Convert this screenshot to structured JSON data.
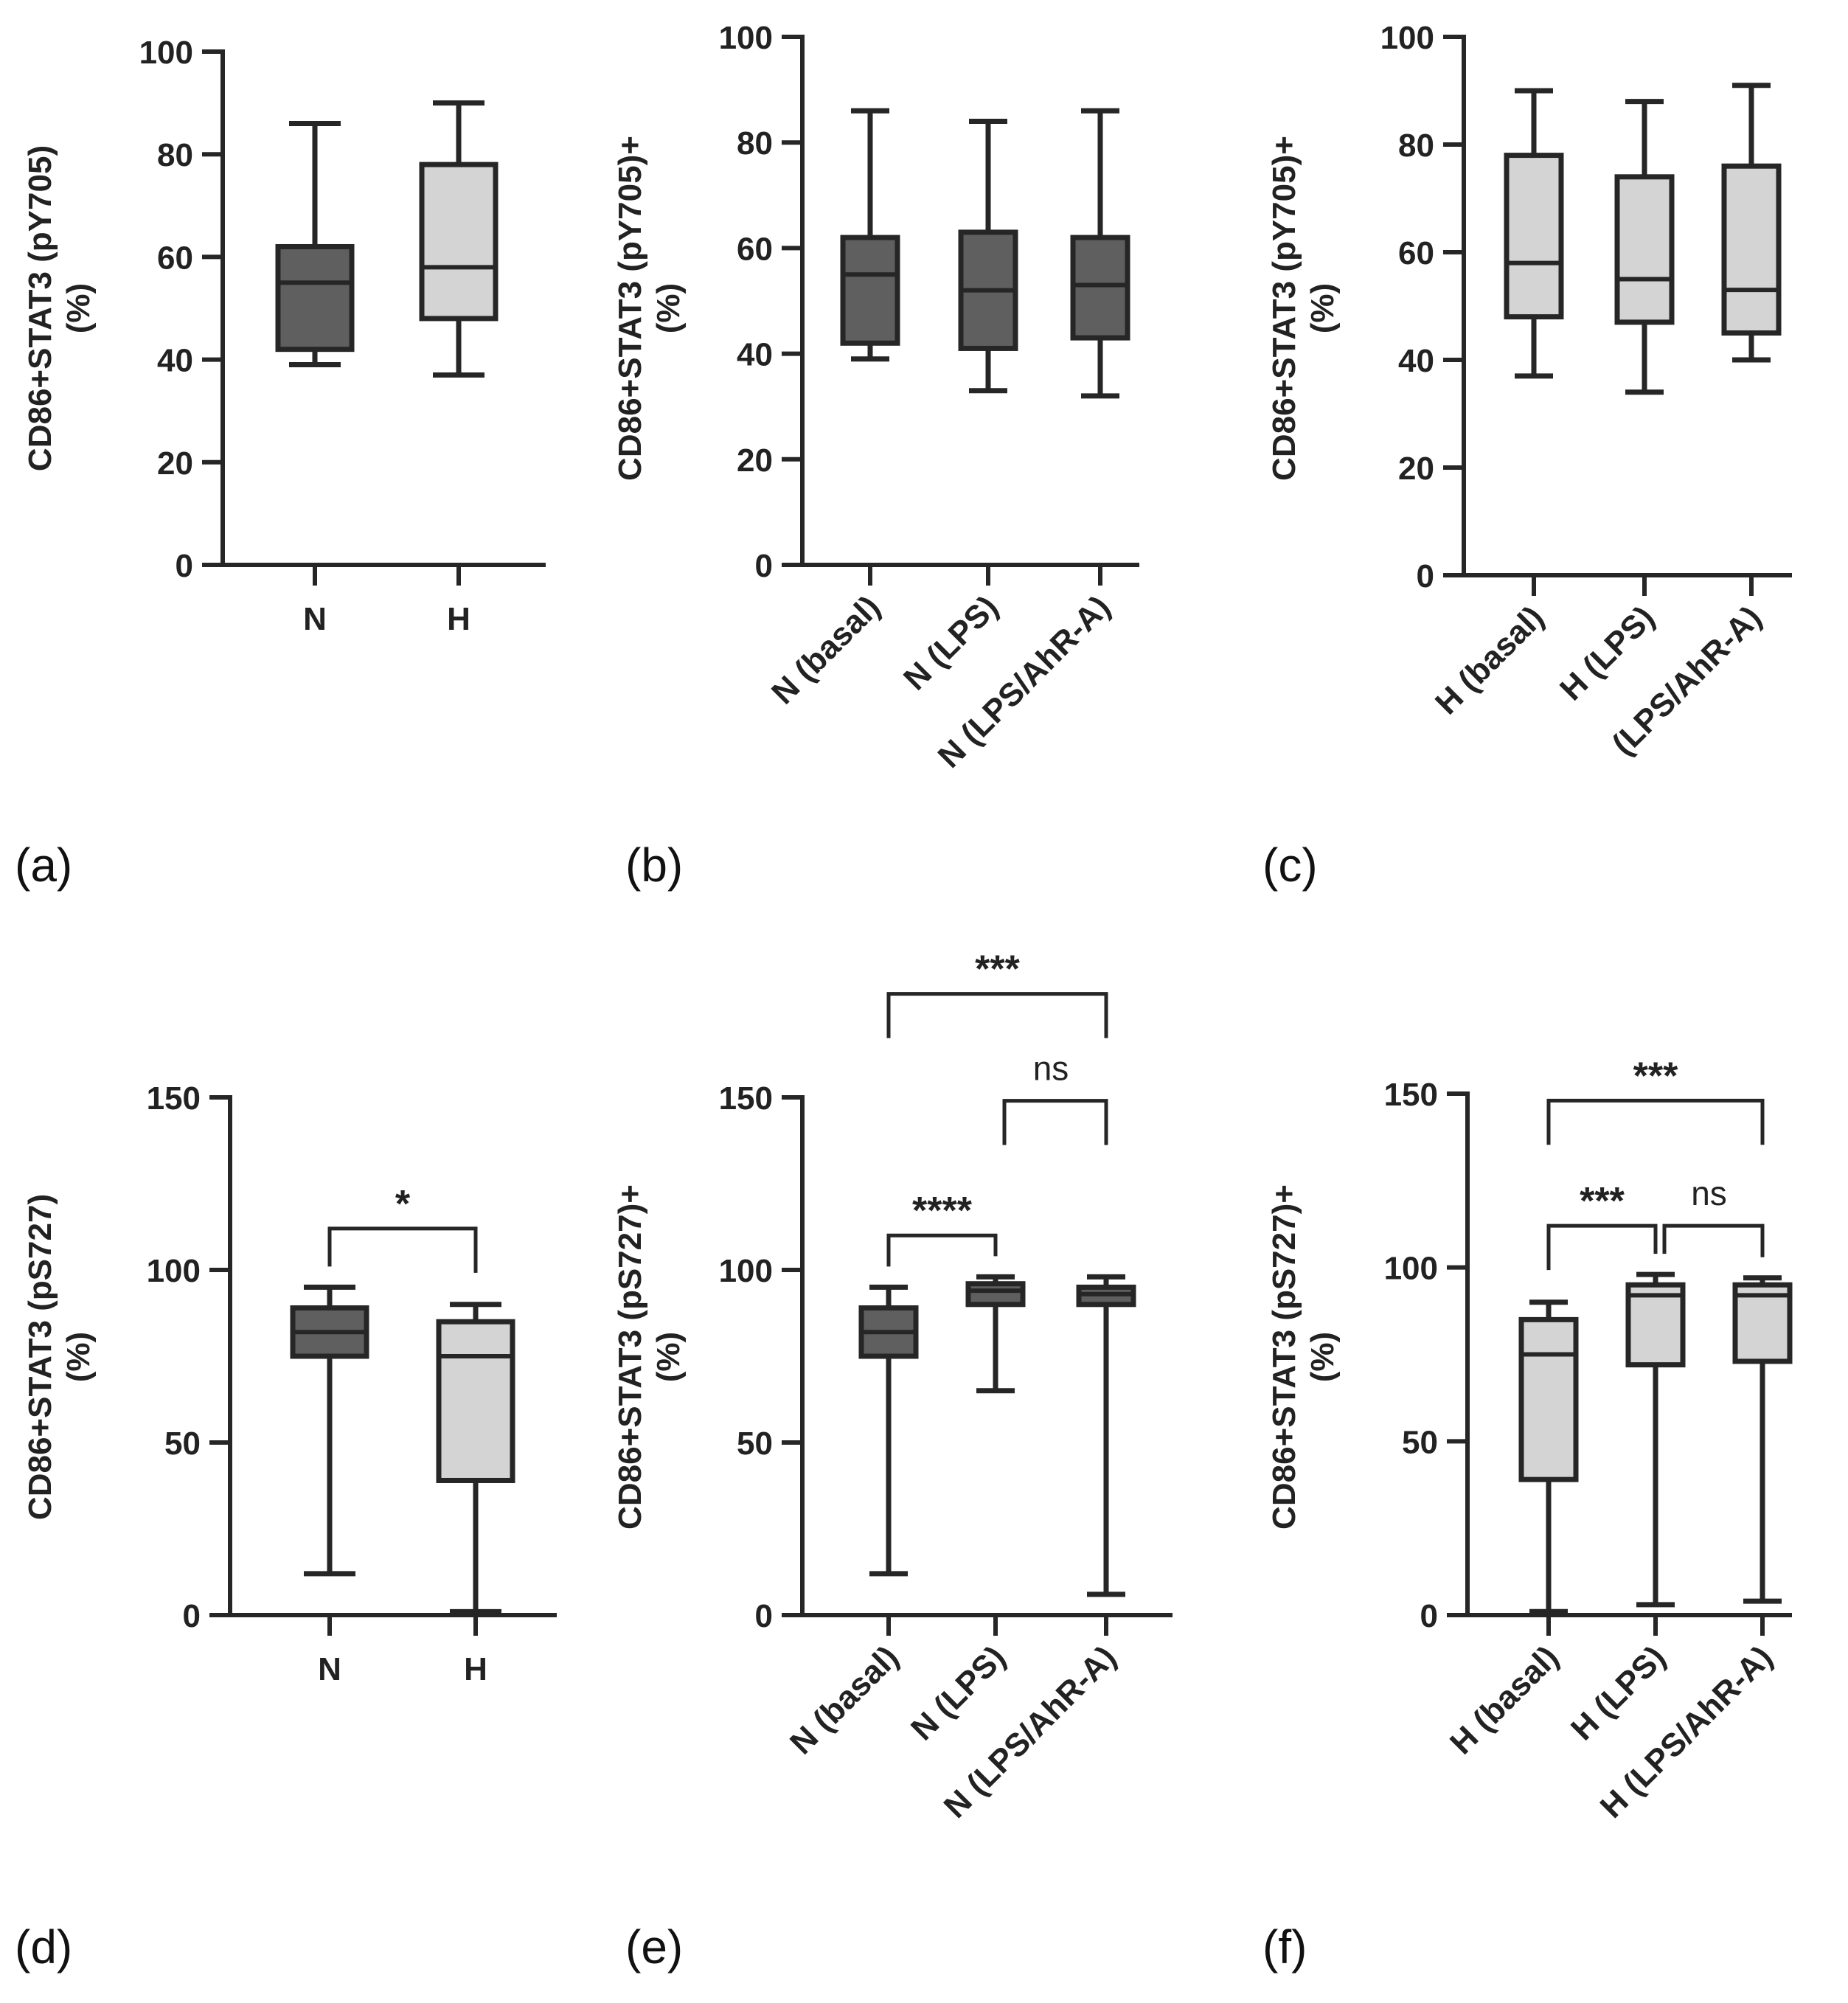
{
  "chart_data": [
    {
      "panel": "(a)",
      "type": "box",
      "ylabel": [
        "CD86+STAT3 (pY705)",
        "(%)"
      ],
      "ylim": [
        0,
        100
      ],
      "yticks": [
        "0",
        "20",
        "40",
        "60",
        "80",
        "100"
      ],
      "categories": [
        "N",
        "H"
      ],
      "boxes": [
        {
          "min": 39,
          "q1": 42,
          "median": 55,
          "q3": 62,
          "max": 86,
          "fill": "#5f5f5f"
        },
        {
          "min": 37,
          "q1": 48,
          "median": 58,
          "q3": 78,
          "max": 90,
          "fill": "#d4d4d4"
        }
      ],
      "significance": []
    },
    {
      "panel": "(b)",
      "type": "box",
      "ylabel": [
        "CD86+STAT3 (pY705)+",
        "(%)"
      ],
      "ylim": [
        0,
        100
      ],
      "yticks": [
        "0",
        "20",
        "40",
        "60",
        "80",
        "100"
      ],
      "categories": [
        "N (basal)",
        "N (LPS)",
        "N (LPS/AhR-A)"
      ],
      "boxes": [
        {
          "min": 39,
          "q1": 42,
          "median": 55,
          "q3": 62,
          "max": 86,
          "fill": "#5f5f5f"
        },
        {
          "min": 33,
          "q1": 41,
          "median": 52,
          "q3": 63,
          "max": 84,
          "fill": "#5f5f5f"
        },
        {
          "min": 32,
          "q1": 43,
          "median": 53,
          "q3": 62,
          "max": 86,
          "fill": "#5f5f5f"
        }
      ],
      "significance": []
    },
    {
      "panel": "(c)",
      "type": "box",
      "ylabel": [
        "CD86+STAT3 (pY705)+",
        "(%)"
      ],
      "ylim": [
        0,
        100
      ],
      "yticks": [
        "0",
        "20",
        "40",
        "60",
        "80",
        "100"
      ],
      "categories": [
        "H (basal)",
        "H (LPS)",
        "(LPS/AhR-A)"
      ],
      "boxes": [
        {
          "min": 37,
          "q1": 48,
          "median": 58,
          "q3": 78,
          "max": 90,
          "fill": "#d4d4d4"
        },
        {
          "min": 34,
          "q1": 47,
          "median": 55,
          "q3": 74,
          "max": 88,
          "fill": "#d4d4d4"
        },
        {
          "min": 40,
          "q1": 45,
          "median": 53,
          "q3": 76,
          "max": 91,
          "fill": "#d4d4d4"
        }
      ],
      "significance": []
    },
    {
      "panel": "(d)",
      "type": "box",
      "ylabel": [
        "CD86+STAT3 (pS727)",
        "(%)"
      ],
      "ylim": [
        0,
        150
      ],
      "yticks": [
        "0",
        "50",
        "100",
        "150"
      ],
      "categories": [
        "N",
        "H"
      ],
      "boxes": [
        {
          "min": 12,
          "q1": 75,
          "median": 82,
          "q3": 89,
          "max": 95,
          "fill": "#5f5f5f"
        },
        {
          "min": 1,
          "q1": 39,
          "median": 75,
          "q3": 85,
          "max": 90,
          "fill": "#d4d4d4"
        }
      ],
      "significance": [
        {
          "from": 0,
          "to": 1,
          "level": 112,
          "label": "*"
        }
      ]
    },
    {
      "panel": "(e)",
      "type": "box",
      "ylabel": [
        "CD86+STAT3 (pS727)+",
        "(%)"
      ],
      "ylim": [
        0,
        150
      ],
      "yticks": [
        "0",
        "50",
        "100",
        "150"
      ],
      "categories": [
        "N (basal)",
        "N (LPS)",
        "N (LPS/AhR-A)"
      ],
      "boxes": [
        {
          "min": 12,
          "q1": 75,
          "median": 82,
          "q3": 89,
          "max": 95,
          "fill": "#5f5f5f"
        },
        {
          "min": 65,
          "q1": 90,
          "median": 94,
          "q3": 96,
          "max": 98,
          "fill": "#5f5f5f"
        },
        {
          "min": 6,
          "q1": 90,
          "median": 93,
          "q3": 95,
          "max": 98,
          "fill": "#5f5f5f"
        }
      ],
      "significance": [
        {
          "from": 0,
          "to": 1,
          "level": 110,
          "label": "****"
        },
        {
          "from": 1,
          "to": 2,
          "level": 149,
          "label": "ns"
        },
        {
          "from": 0,
          "to": 2,
          "level": 180,
          "label": "***"
        }
      ]
    },
    {
      "panel": "(f)",
      "type": "box",
      "ylabel": [
        "CD86+STAT3 (pS727)+",
        "(%)"
      ],
      "ylim": [
        0,
        150
      ],
      "yticks": [
        "0",
        "50",
        "100",
        "150"
      ],
      "categories": [
        "H (basal)",
        "H (LPS)",
        "H (LPS/AhR-A)"
      ],
      "boxes": [
        {
          "min": 1,
          "q1": 39,
          "median": 75,
          "q3": 85,
          "max": 90,
          "fill": "#d4d4d4"
        },
        {
          "min": 3,
          "q1": 72,
          "median": 92,
          "q3": 95,
          "max": 98,
          "fill": "#d4d4d4"
        },
        {
          "min": 4,
          "q1": 73,
          "median": 92,
          "q3": 95,
          "max": 97,
          "fill": "#d4d4d4"
        }
      ],
      "significance": [
        {
          "from": 0,
          "to": 1,
          "level": 112,
          "label": "***"
        },
        {
          "from": 1,
          "to": 2,
          "level": 112,
          "label": "ns"
        },
        {
          "from": 0,
          "to": 2,
          "level": 148,
          "label": "***"
        }
      ]
    }
  ],
  "colors": {
    "line": "#262626",
    "dark_box": "#5f5f5f",
    "light_box": "#d4d4d4"
  }
}
